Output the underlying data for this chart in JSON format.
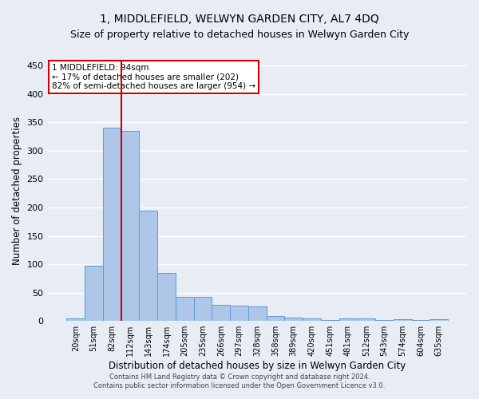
{
  "title": "1, MIDDLEFIELD, WELWYN GARDEN CITY, AL7 4DQ",
  "subtitle": "Size of property relative to detached houses in Welwyn Garden City",
  "xlabel": "Distribution of detached houses by size in Welwyn Garden City",
  "ylabel": "Number of detached properties",
  "footnote1": "Contains HM Land Registry data © Crown copyright and database right 2024.",
  "footnote2": "Contains public sector information licensed under the Open Government Licence v3.0.",
  "annotation_line1": "1 MIDDLEFIELD: 94sqm",
  "annotation_line2": "← 17% of detached houses are smaller (202)",
  "annotation_line3": "82% of semi-detached houses are larger (954) →",
  "bar_labels": [
    "20sqm",
    "51sqm",
    "82sqm",
    "112sqm",
    "143sqm",
    "174sqm",
    "205sqm",
    "235sqm",
    "266sqm",
    "297sqm",
    "328sqm",
    "358sqm",
    "389sqm",
    "420sqm",
    "451sqm",
    "481sqm",
    "512sqm",
    "543sqm",
    "574sqm",
    "604sqm",
    "635sqm"
  ],
  "bar_heights": [
    5,
    97,
    340,
    335,
    195,
    85,
    42,
    42,
    28,
    27,
    25,
    9,
    6,
    4,
    1,
    5,
    5,
    1,
    3,
    1,
    3
  ],
  "bar_color": "#aec6e8",
  "bar_edge_color": "#5b9bd5",
  "vline_color": "#cc0000",
  "ylim": [
    0,
    460
  ],
  "yticks": [
    0,
    50,
    100,
    150,
    200,
    250,
    300,
    350,
    400,
    450
  ],
  "bg_color": "#e8edf5",
  "plot_bg_color": "#e8edf5",
  "annotation_box_color": "#ffffff",
  "annotation_box_edge": "#cc0000",
  "grid_color": "#ffffff",
  "title_fontsize": 10,
  "subtitle_fontsize": 9
}
